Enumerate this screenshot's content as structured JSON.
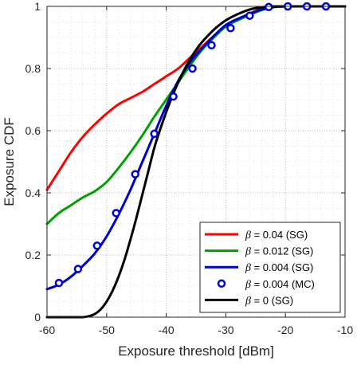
{
  "chart_data": {
    "type": "line",
    "title": "",
    "xlabel": "Exposure threshold [dBm]",
    "ylabel": "Exposure CDF",
    "xlim": [
      -60,
      -10
    ],
    "ylim": [
      0,
      1
    ],
    "grid": "on (dotted major and minor)",
    "legend_placement": "bottom-right",
    "x_ticks": [
      "-60",
      "-50",
      "-40",
      "-30",
      "-20",
      "-10"
    ],
    "y_ticks": [
      "0",
      "0.2",
      "0.4",
      "0.6",
      "0.8",
      "1"
    ],
    "series": [
      {
        "name": "β = 0.04 (SG)",
        "label_beta": "β",
        "label_rest": " = 0.04 (SG)",
        "color": "#ff0000",
        "style": "line",
        "x": [
          -60,
          -58,
          -56,
          -54,
          -52,
          -50,
          -48,
          -46,
          -44,
          -42,
          -40,
          -38,
          -36,
          -34,
          -32,
          -30,
          -28,
          -26,
          -24,
          -22,
          -20,
          -18,
          -16,
          -14,
          -12,
          -10
        ],
        "y": [
          0.41,
          0.47,
          0.53,
          0.58,
          0.62,
          0.655,
          0.685,
          0.705,
          0.725,
          0.75,
          0.775,
          0.8,
          0.835,
          0.87,
          0.905,
          0.935,
          0.958,
          0.977,
          0.992,
          0.998,
          1,
          1,
          1,
          1,
          1,
          1
        ]
      },
      {
        "name": "β = 0.012 (SG)",
        "label_beta": "β",
        "label_rest": " = 0.012 (SG)",
        "color": "#00a000",
        "style": "line",
        "x": [
          -60,
          -58,
          -56,
          -54,
          -52,
          -50,
          -48,
          -46,
          -44,
          -42,
          -40,
          -38,
          -36,
          -34,
          -32,
          -30,
          -28,
          -26,
          -24,
          -22,
          -20,
          -18,
          -16,
          -14,
          -12,
          -10
        ],
        "y": [
          0.3,
          0.335,
          0.36,
          0.385,
          0.405,
          0.435,
          0.48,
          0.53,
          0.585,
          0.645,
          0.7,
          0.755,
          0.81,
          0.86,
          0.9,
          0.935,
          0.955,
          0.972,
          0.988,
          0.997,
          1,
          1,
          1,
          1,
          1,
          1
        ]
      },
      {
        "name": "β = 0.004 (SG)",
        "label_beta": "β",
        "label_rest": " = 0.004 (SG)",
        "color": "#0000cc",
        "style": "line",
        "x": [
          -60,
          -58,
          -56,
          -54,
          -52,
          -50,
          -48,
          -46,
          -44,
          -42,
          -40,
          -38,
          -36,
          -34,
          -32,
          -30,
          -28,
          -26,
          -24,
          -22,
          -20,
          -18,
          -16,
          -14,
          -12,
          -10
        ],
        "y": [
          0.09,
          0.105,
          0.13,
          0.165,
          0.205,
          0.26,
          0.33,
          0.41,
          0.5,
          0.59,
          0.68,
          0.76,
          0.82,
          0.865,
          0.905,
          0.94,
          0.96,
          0.976,
          0.99,
          0.998,
          1,
          1,
          1,
          1,
          1,
          1
        ]
      },
      {
        "name": "β = 0.004 (MC)",
        "label_beta": "β",
        "label_rest": " = 0.004 (MC)",
        "color": "#0000cc",
        "style": "markers",
        "x": [
          -58,
          -54.8,
          -51.6,
          -48.4,
          -45.2,
          -42,
          -38.8,
          -35.6,
          -32.4,
          -29.2,
          -26,
          -22.8,
          -19.6,
          -16.4,
          -13.2
        ],
        "y": [
          0.11,
          0.155,
          0.23,
          0.335,
          0.46,
          0.59,
          0.71,
          0.8,
          0.875,
          0.93,
          0.97,
          0.998,
          1,
          1,
          1
        ]
      },
      {
        "name": "β = 0 (SG)",
        "label_beta": "β",
        "label_rest": " = 0 (SG)",
        "color": "#000000",
        "style": "line",
        "x": [
          -60,
          -56,
          -54,
          -53,
          -52,
          -51,
          -50,
          -49,
          -48,
          -47,
          -46,
          -45,
          -44,
          -43,
          -42,
          -41,
          -40,
          -39,
          -38,
          -37,
          -36,
          -35,
          -34,
          -32,
          -30,
          -28,
          -26,
          -24,
          -22,
          -20,
          -15,
          -10
        ],
        "y": [
          0,
          0,
          0,
          0.003,
          0.01,
          0.025,
          0.05,
          0.085,
          0.13,
          0.185,
          0.25,
          0.32,
          0.395,
          0.47,
          0.545,
          0.605,
          0.66,
          0.71,
          0.755,
          0.795,
          0.83,
          0.86,
          0.885,
          0.925,
          0.955,
          0.975,
          0.99,
          0.997,
          1,
          1,
          1,
          1
        ]
      }
    ]
  }
}
